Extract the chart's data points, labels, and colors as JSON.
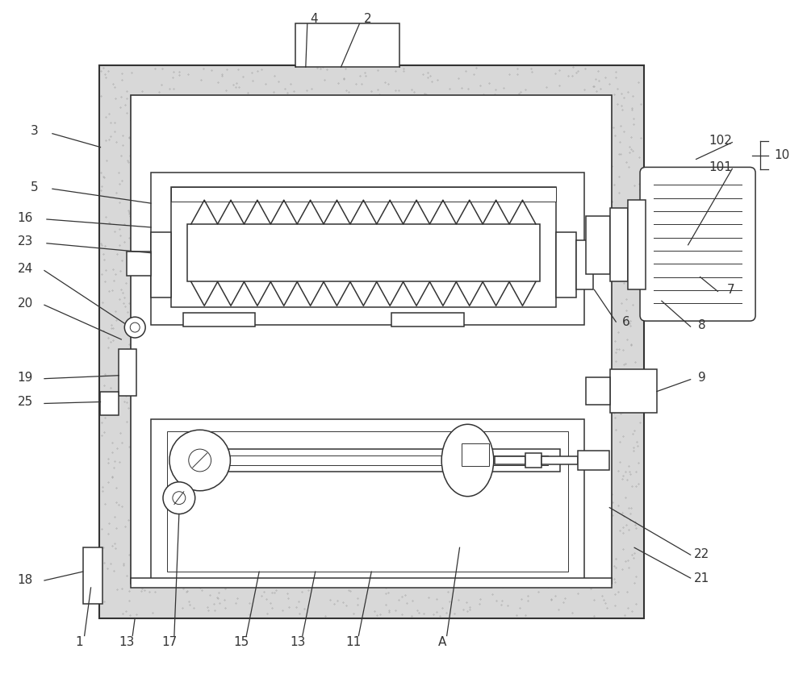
{
  "bg": "#ffffff",
  "lc": "#333333",
  "stipple_color": "#aaaaaa",
  "shell_fill": "#d0d0d0",
  "fig_w": 10.0,
  "fig_h": 8.41,
  "lw": 1.1,
  "lwt": 0.7,
  "lfs": 11
}
